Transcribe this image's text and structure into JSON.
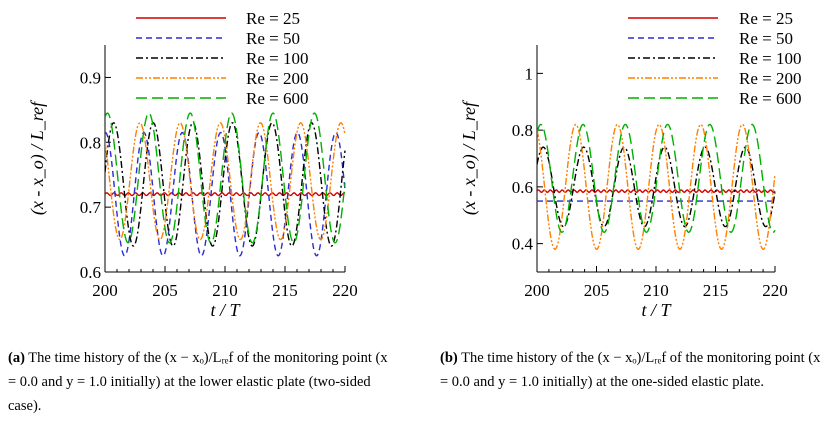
{
  "chart_data": [
    {
      "type": "line",
      "panel": "a",
      "xlabel": "t / T",
      "ylabel": "(x - x_o) / L_ref",
      "xlim": [
        200,
        220
      ],
      "ylim": [
        0.6,
        0.95
      ],
      "xticks": [
        200,
        205,
        210,
        215,
        220
      ],
      "yticks": [
        0.6,
        0.7,
        0.8,
        0.9
      ],
      "xtick_labels": [
        "200",
        "205",
        "210",
        "215",
        "220"
      ],
      "ytick_labels": [
        "0.6",
        "0.7",
        "0.8",
        "0.9"
      ],
      "legend_position": "top",
      "series": [
        {
          "name": "Re = 25",
          "re": "25",
          "color": "#d40000",
          "dash": "solid",
          "mean": 0.72,
          "amp": 0.002,
          "period": 0.6,
          "phase": 0.0
        },
        {
          "name": "Re = 50",
          "re": "50",
          "color": "#2b2bd4",
          "dash": "dashed",
          "mean": 0.72,
          "amp": 0.095,
          "period": 3.2,
          "phase": 1.5
        },
        {
          "name": "Re = 100",
          "re": "100",
          "color": "#000000",
          "dash": "dashdot",
          "mean": 0.735,
          "amp": 0.095,
          "period": 3.3,
          "phase": 0.2
        },
        {
          "name": "Re = 200",
          "re": "200",
          "color": "#ff8000",
          "dash": "dashdotdot",
          "mean": 0.74,
          "amp": 0.09,
          "period": 3.35,
          "phase": 2.4
        },
        {
          "name": "Re = 600",
          "re": "600",
          "color": "#00b000",
          "dash": "longdash",
          "mean": 0.745,
          "amp": 0.1,
          "period": 3.45,
          "phase": 1.2
        }
      ]
    },
    {
      "type": "line",
      "panel": "b",
      "xlabel": "t / T",
      "ylabel": "(x - x_o) / L_ref",
      "xlim": [
        200,
        220
      ],
      "ylim": [
        0.3,
        1.1
      ],
      "xticks": [
        200,
        205,
        210,
        215,
        220
      ],
      "yticks": [
        0.4,
        0.6,
        0.8,
        1.0
      ],
      "xtick_labels": [
        "200",
        "205",
        "210",
        "215",
        "220"
      ],
      "ytick_labels": [
        "0.4",
        "0.6",
        "0.8",
        "1"
      ],
      "legend_position": "top",
      "series": [
        {
          "name": "Re = 25",
          "re": "25",
          "color": "#d40000",
          "dash": "solid",
          "mean": 0.585,
          "amp": 0.004,
          "period": 0.5,
          "phase": 0.0
        },
        {
          "name": "Re = 50",
          "re": "50",
          "color": "#2b2bd4",
          "dash": "dashed",
          "mean": 0.55,
          "amp": 0.0,
          "period": 3.0,
          "phase": 0.0
        },
        {
          "name": "Re = 100",
          "re": "100",
          "color": "#000000",
          "dash": "dashdot",
          "mean": 0.6,
          "amp": 0.14,
          "period": 3.4,
          "phase": 0.6
        },
        {
          "name": "Re = 200",
          "re": "200",
          "color": "#ff8000",
          "dash": "dashdotdot",
          "mean": 0.6,
          "amp": 0.22,
          "period": 3.5,
          "phase": 2.0
        },
        {
          "name": "Re = 600",
          "re": "600",
          "color": "#00b000",
          "dash": "longdash",
          "mean": 0.63,
          "amp": 0.19,
          "period": 3.55,
          "phase": 1.0
        }
      ]
    }
  ],
  "captions": {
    "a": {
      "label": "(a)",
      "text": "The time history of the (x − xₒ)/Lᵣₑf of the monitoring point (x = 0.0 and y = 1.0 initially) at the lower elastic plate (two-sided case)."
    },
    "b": {
      "label": "(b)",
      "text": "The time history of the (x − xₒ)/Lᵣₑf of the monitoring point (x = 0.0 and y = 1.0 initially) at the one-sided elastic plate."
    }
  }
}
